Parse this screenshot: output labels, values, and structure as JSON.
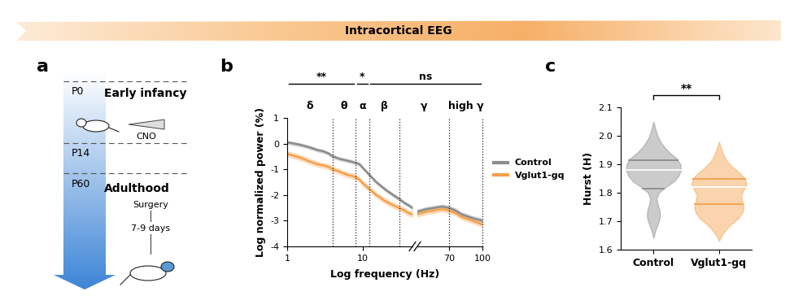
{
  "header": {
    "title": "Intracortical EEG"
  },
  "panel_labels": [
    "a",
    "b",
    "c"
  ],
  "diagram": {
    "timepoints": [
      {
        "label": "P0",
        "stage": "Early infancy",
        "events": [
          "CNO"
        ]
      },
      {
        "label": "P14"
      },
      {
        "label": "P60",
        "stage": "Adulthood",
        "events": [
          "Surgery",
          "7-9 days"
        ]
      }
    ]
  },
  "chart_data": [
    {
      "type": "line",
      "x_label": "Log frequency (Hz)",
      "y_label": "Log normalized power (%)",
      "log": "x",
      "segments": [
        {
          "xlim": [
            1,
            45
          ],
          "xticks": [
            1,
            10
          ]
        },
        {
          "xlim": [
            50,
            100
          ],
          "xticks": [
            70,
            100
          ]
        }
      ],
      "ylim": [
        -4,
        1
      ],
      "yticks": [
        -4,
        -3,
        -2,
        -1,
        0,
        1
      ],
      "legend": "center left",
      "bands": [
        {
          "label": "δ",
          "range": [
            1,
            4
          ]
        },
        {
          "label": "θ",
          "range": [
            4,
            8
          ]
        },
        {
          "label": "α",
          "range": [
            8,
            12
          ]
        },
        {
          "label": "β",
          "range": [
            12,
            30
          ]
        },
        {
          "label": "γ",
          "range": [
            30,
            70
          ]
        },
        {
          "label": "high γ",
          "range": [
            70,
            100
          ]
        }
      ],
      "significance": [
        {
          "label": "**",
          "range": [
            1,
            8
          ]
        },
        {
          "label": "*",
          "range": [
            8,
            12
          ]
        },
        {
          "label": "ns",
          "range": [
            12,
            100
          ]
        }
      ],
      "x": [
        1,
        1.5,
        2,
        2.5,
        3,
        3.5,
        4,
        5,
        6,
        7,
        8,
        9,
        10,
        12,
        15,
        20,
        25,
        30,
        35,
        40,
        45,
        50,
        55,
        60,
        65,
        70,
        75,
        80,
        90,
        100
      ],
      "series": [
        {
          "name": "Control",
          "color": "#8c8c8c",
          "values": [
            0.05,
            -0.05,
            -0.15,
            -0.25,
            -0.3,
            -0.38,
            -0.5,
            -0.6,
            -0.65,
            -0.7,
            -0.75,
            -0.8,
            -0.95,
            -1.2,
            -1.5,
            -1.8,
            -2.0,
            -2.15,
            -2.3,
            -2.4,
            -2.5,
            -2.65,
            -2.55,
            -2.5,
            -2.45,
            -2.5,
            -2.6,
            -2.75,
            -2.9,
            -3.0
          ],
          "error": [
            0.08,
            0.08,
            0.08,
            0.08,
            0.08,
            0.08,
            0.08,
            0.08,
            0.08,
            0.08,
            0.08,
            0.08,
            0.08,
            0.08,
            0.08,
            0.08,
            0.08,
            0.08,
            0.08,
            0.08,
            0.08,
            0.1,
            0.1,
            0.1,
            0.1,
            0.1,
            0.1,
            0.1,
            0.1,
            0.1
          ]
        },
        {
          "name": "Vglut1-gq",
          "color": "#f5a04a",
          "values": [
            -0.4,
            -0.55,
            -0.7,
            -0.8,
            -0.85,
            -0.9,
            -1.0,
            -1.1,
            -1.2,
            -1.25,
            -1.3,
            -1.4,
            -1.55,
            -1.75,
            -2.0,
            -2.25,
            -2.4,
            -2.5,
            -2.6,
            -2.7,
            -2.75,
            -2.75,
            -2.65,
            -2.6,
            -2.55,
            -2.6,
            -2.7,
            -2.85,
            -3.0,
            -3.15
          ],
          "error": [
            0.12,
            0.12,
            0.12,
            0.12,
            0.12,
            0.12,
            0.12,
            0.12,
            0.12,
            0.12,
            0.12,
            0.12,
            0.12,
            0.12,
            0.12,
            0.12,
            0.12,
            0.12,
            0.12,
            0.12,
            0.12,
            0.12,
            0.12,
            0.12,
            0.12,
            0.12,
            0.12,
            0.12,
            0.12,
            0.12
          ]
        }
      ]
    },
    {
      "type": "violin",
      "y_label": "Hurst (H)",
      "categories": [
        "Control",
        "Vglut1-gq"
      ],
      "ylim": [
        1.6,
        2.1
      ],
      "yticks": [
        1.6,
        1.7,
        1.8,
        1.9,
        2.0,
        2.1
      ],
      "groups": [
        {
          "name": "Control",
          "color": "#8c8c8c",
          "y": [
            1.64,
            1.66,
            1.68,
            1.7,
            1.72,
            1.74,
            1.76,
            1.78,
            1.8,
            1.82,
            1.84,
            1.86,
            1.88,
            1.9,
            1.92,
            1.94,
            1.96,
            1.98,
            2.0,
            2.02,
            2.04,
            2.05
          ],
          "density": [
            0,
            0.05,
            0.12,
            0.2,
            0.24,
            0.22,
            0.15,
            0.12,
            0.2,
            0.45,
            0.75,
            0.92,
            1.0,
            0.98,
            0.85,
            0.6,
            0.4,
            0.25,
            0.15,
            0.08,
            0.03,
            0
          ],
          "quartiles": [
            1.815,
            1.88,
            1.915
          ]
        },
        {
          "name": "Vglut1-gq",
          "color": "#f5a04a",
          "y": [
            1.63,
            1.65,
            1.67,
            1.69,
            1.71,
            1.73,
            1.75,
            1.77,
            1.79,
            1.81,
            1.83,
            1.85,
            1.87,
            1.89,
            1.91,
            1.93,
            1.95,
            1.97,
            1.98
          ],
          "density": [
            0,
            0.1,
            0.25,
            0.45,
            0.7,
            0.85,
            0.9,
            0.85,
            0.8,
            0.9,
            1.0,
            0.95,
            0.75,
            0.5,
            0.3,
            0.18,
            0.1,
            0.03,
            0
          ],
          "quartiles": [
            1.76,
            1.82,
            1.85
          ]
        }
      ],
      "significance": [
        {
          "label": "**",
          "between": [
            "Control",
            "Vglut1-gq"
          ]
        }
      ]
    }
  ]
}
